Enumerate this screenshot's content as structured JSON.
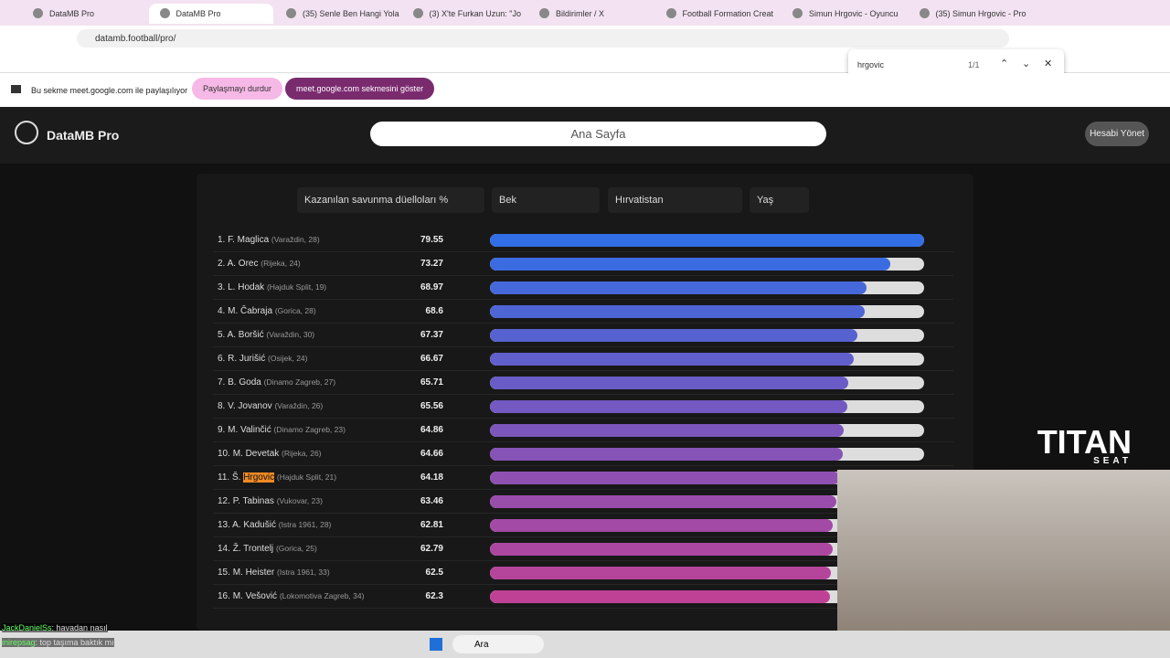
{
  "tabs": [
    "DataMB Pro",
    "DataMB Pro",
    "(35) Senle Ben Hangi Yola",
    "(3) X'te Furkan Uzun: \"Jo",
    "Bildirimler / X",
    "Football Formation Creat",
    "Simun Hrgovic - Oyuncu",
    "(35) Simun Hrgovic - Pro"
  ],
  "address": "datamb.football/pro/",
  "find": {
    "query": "hrgovic",
    "count": "1/1"
  },
  "share": {
    "text": "Bu sekme meet.google.com ile paylaşılıyor",
    "stop": "Paylaşmayı durdur",
    "show": "meet.google.com sekmesini göster"
  },
  "app": {
    "brand": "DataMB Pro",
    "search": "Ana Sayfa",
    "account": "Hesabi Yönet",
    "filters": [
      "Kazanılan savunma düelloları %",
      "Bek",
      "Hırvatistan",
      "Yaş"
    ]
  },
  "players": [
    {
      "rank": "1.",
      "name": "F. Maglica",
      "info": "(Varaždin, 28)",
      "value": 79.55
    },
    {
      "rank": "2.",
      "name": "A. Orec",
      "info": "(Rijeka, 24)",
      "value": 73.27
    },
    {
      "rank": "3.",
      "name": "L. Hodak",
      "info": "(Hajduk Split, 19)",
      "value": 68.97
    },
    {
      "rank": "4.",
      "name": "M. Čabraja",
      "info": "(Gorica, 28)",
      "value": 68.6
    },
    {
      "rank": "5.",
      "name": "A. Boršić",
      "info": "(Varaždin, 30)",
      "value": 67.37
    },
    {
      "rank": "6.",
      "name": "R. Jurišić",
      "info": "(Osijek, 24)",
      "value": 66.67
    },
    {
      "rank": "7.",
      "name": "B. Goda",
      "info": "(Dinamo Zagreb, 27)",
      "value": 65.71
    },
    {
      "rank": "8.",
      "name": "V. Jovanov",
      "info": "(Varaždin, 26)",
      "value": 65.56
    },
    {
      "rank": "9.",
      "name": "M. Valinčić",
      "info": "(Dinamo Zagreb, 23)",
      "value": 64.86
    },
    {
      "rank": "10.",
      "name": "M. Devetak",
      "info": "(Rijeka, 26)",
      "value": 64.66
    },
    {
      "rank": "11.",
      "name": "Š. Hrgovic",
      "info": "(Hajduk Split, 21)",
      "value": 64.18
    },
    {
      "rank": "12.",
      "name": "P. Tabinas",
      "info": "(Vukovar, 23)",
      "value": 63.46
    },
    {
      "rank": "13.",
      "name": "A. Kadušić",
      "info": "(Istra 1961, 28)",
      "value": 62.81
    },
    {
      "rank": "14.",
      "name": "Ž. Trontelj",
      "info": "(Gorica, 25)",
      "value": 62.79
    },
    {
      "rank": "15.",
      "name": "M. Heister",
      "info": "(Istra 1961, 33)",
      "value": 62.5
    },
    {
      "rank": "16.",
      "name": "M. Vešović",
      "info": "(Lokomotiva Zagreb, 34)",
      "value": 62.3
    }
  ],
  "overlay": {
    "logo": "TITAN",
    "logo_sub": "SEAT",
    "chat": [
      {
        "user": "JackDanielSs",
        "msg": ": havadan nasıl"
      },
      {
        "user": "inirepsag",
        "msg": ": top taşıma baktık mı"
      }
    ]
  },
  "taskbar": {
    "search": "Ara"
  }
}
